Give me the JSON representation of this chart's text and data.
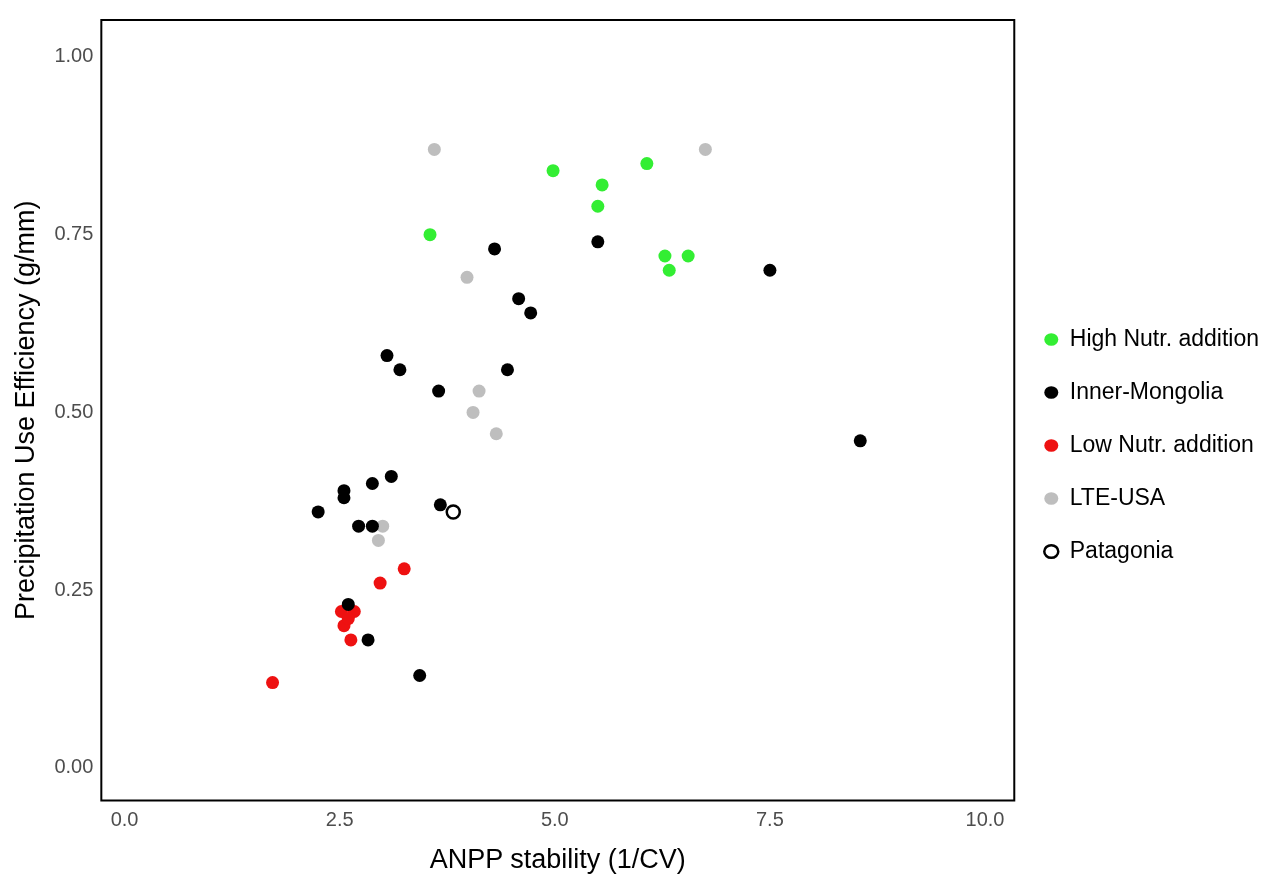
{
  "chart_data": {
    "type": "scatter",
    "xlabel": "ANPP stability (1/CV)",
    "ylabel": "Precipitation Use Efficiency (g/mm)",
    "xlim": [
      -0.27,
      10.34
    ],
    "ylim": [
      -0.046,
      1.052
    ],
    "xticks": [
      {
        "value": 0,
        "label": "0.0"
      },
      {
        "value": 2.5,
        "label": "2.5"
      },
      {
        "value": 5,
        "label": "5.0"
      },
      {
        "value": 7.5,
        "label": "7.5"
      },
      {
        "value": 10,
        "label": "10.0"
      }
    ],
    "yticks": [
      {
        "value": 0,
        "label": "0.00"
      },
      {
        "value": 0.25,
        "label": "0.25"
      },
      {
        "value": 0.5,
        "label": "0.50"
      },
      {
        "value": 0.75,
        "label": "0.75"
      },
      {
        "value": 1,
        "label": "1.00"
      }
    ],
    "grid": false,
    "legend": "right",
    "marker": "circle",
    "series": [
      {
        "name": "High Nutr. addition",
        "color": "#33ee33",
        "x": [
          3.55,
          4.98,
          5.55,
          5.5,
          6.07,
          6.28,
          6.55,
          6.33
        ],
        "values": [
          0.75,
          0.84,
          0.82,
          0.79,
          0.85,
          0.72,
          0.72,
          0.7
        ]
      },
      {
        "name": "Inner-Mongolia",
        "color": "#000000",
        "x": [
          4.3,
          5.5,
          7.5,
          4.58,
          4.72,
          3.05,
          3.2,
          4.45,
          3.65,
          8.55,
          2.55,
          2.55,
          2.88,
          3.1,
          2.25,
          3.67,
          2.72,
          2.88,
          2.6,
          2.83,
          3.43
        ],
        "values": [
          0.73,
          0.74,
          0.7,
          0.66,
          0.64,
          0.58,
          0.56,
          0.56,
          0.53,
          0.46,
          0.39,
          0.38,
          0.4,
          0.41,
          0.36,
          0.37,
          0.34,
          0.34,
          0.23,
          0.18,
          0.13
        ]
      },
      {
        "name": "Low Nutr. addition",
        "color": "#ee1111",
        "x": [
          1.72,
          2.52,
          2.67,
          2.55,
          2.6,
          2.63,
          2.97,
          3.25
        ],
        "values": [
          0.12,
          0.22,
          0.22,
          0.2,
          0.21,
          0.18,
          0.26,
          0.28
        ]
      },
      {
        "name": "LTE-USA",
        "color": "#bebebe",
        "x": [
          3.6,
          6.75,
          3.98,
          4.12,
          4.05,
          4.32,
          3.0,
          2.95
        ],
        "values": [
          0.87,
          0.87,
          0.69,
          0.53,
          0.5,
          0.47,
          0.34,
          0.32
        ]
      },
      {
        "name": "Patagonia",
        "color": "#000000",
        "marker": "open circle",
        "x": [
          3.82
        ],
        "values": [
          0.36
        ]
      }
    ]
  }
}
